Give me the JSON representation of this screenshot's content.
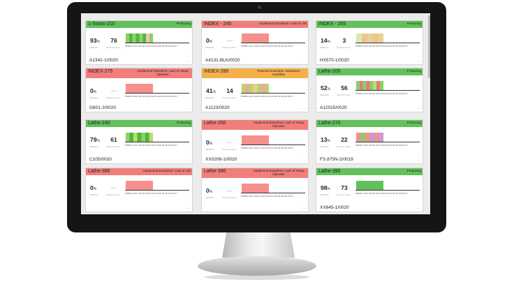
{
  "colors": {
    "producing": "#62c15a",
    "unplanned": "#f27e7b",
    "planned": "#f5b04a"
  },
  "labels": {
    "utilization": "Utilization",
    "process_count": "Process Count",
    "timeline": "PMMNu 04C1 AM 02 AM 03 AM 04 AM 05 AM 06 AM 07",
    "more": "..."
  },
  "cards": [
    {
      "name": "1-Swiss-210",
      "status": "Producing",
      "kind": "producing",
      "util": "93",
      "count": "76",
      "part": "A1342-1/0020",
      "bar": {
        "fraction": 0.42,
        "colors": [
          "#8cd069",
          "#4fb83e",
          "#8cd069",
          "#4fb83e",
          "#8cd069",
          "#4fb83e",
          "#f3c4b8",
          "#8cd069"
        ]
      }
    },
    {
      "name": "INDEX - 245",
      "status": "Unplanned Downtime: Lack of Job",
      "kind": "unplanned",
      "util": "0",
      "count": "—",
      "part": "A4131-BLK/0020",
      "bar": {
        "fraction": 0.42,
        "colors": [
          "#f5908d"
        ]
      }
    },
    {
      "name": "INDEX - 265",
      "status": "Producing",
      "kind": "producing",
      "util": "14",
      "count": "3",
      "part": "HX570-1/0020",
      "bar": {
        "fraction": 0.42,
        "colors": [
          "#d9e8b0",
          "#f1c48c",
          "#e9cf98",
          "#f1c48c",
          "#e9cf98"
        ]
      }
    },
    {
      "name": "INDEX-275",
      "status": "Unplanned Downtime: Lack of Setup Operator",
      "kind": "unplanned",
      "util": "0",
      "count": "—",
      "part": "G601-2/0020",
      "bar": {
        "fraction": 0.42,
        "colors": [
          "#f5908d"
        ]
      }
    },
    {
      "name": "INDEX-280",
      "status": "Planned Downtime: Workpiece Handling",
      "kind": "planned",
      "util": "41",
      "count": "14",
      "part": "A1123/0020",
      "bar": {
        "fraction": 0.42,
        "colors": [
          "#b9d56a",
          "#f3a6a0",
          "#b9d56a",
          "#e9d08c",
          "#b9d56a",
          "#f3a6a0",
          "#b9d56a"
        ]
      }
    },
    {
      "name": "Lathe-205",
      "status": "Producing",
      "kind": "producing",
      "util": "52",
      "count": "56",
      "part": "A12015/0020",
      "bar": {
        "fraction": 0.42,
        "colors": [
          "#8cd069",
          "#e57b7b",
          "#8cd069",
          "#e57b7b",
          "#8cd069",
          "#bcdc7a",
          "#e57b7b",
          "#8cd069"
        ]
      }
    },
    {
      "name": "Lathe-240",
      "status": "Producing",
      "kind": "producing",
      "util": "79",
      "count": "61",
      "part": "C105/0020",
      "bar": {
        "fraction": 0.42,
        "colors": [
          "#8cd069",
          "#4fb83e",
          "#c3d96b",
          "#4fb83e",
          "#8cd069",
          "#4fb83e",
          "#c3d96b"
        ]
      }
    },
    {
      "name": "Lathe-250",
      "status": "Unplanned Downtime: Lack of Setup Operator",
      "kind": "unplanned",
      "util": "0",
      "count": "—",
      "part": "XX0208-1/0020",
      "bar": {
        "fraction": 0.42,
        "colors": [
          "#f5908d"
        ]
      }
    },
    {
      "name": "Lathe-270",
      "status": "Producing",
      "kind": "producing",
      "util": "13",
      "count": "22",
      "part": "FS.875N-2/0019",
      "bar": {
        "fraction": 0.42,
        "colors": [
          "#f5908d",
          "#8cd069",
          "#f5908d",
          "#c99ad6",
          "#f5908d",
          "#c99ad6"
        ]
      }
    },
    {
      "name": "Lathe-385",
      "status": "Unplanned Downtime: Lack of Job",
      "kind": "unplanned",
      "util": "0",
      "count": "—",
      "part": "",
      "bar": {
        "fraction": 0.42,
        "colors": [
          "#f5908d"
        ]
      }
    },
    {
      "name": "Lathe-390",
      "status": "Unplanned Downtime: Lack of Setup Operator",
      "kind": "unplanned",
      "util": "0",
      "count": "—",
      "part": "",
      "bar": {
        "fraction": 0.42,
        "colors": [
          "#f5908d"
        ]
      }
    },
    {
      "name": "Lathe-395",
      "status": "Producing",
      "kind": "producing",
      "util": "98",
      "count": "73",
      "part": "XX645-1/0020",
      "bar": {
        "fraction": 0.42,
        "colors": [
          "#62c15a"
        ]
      }
    }
  ]
}
